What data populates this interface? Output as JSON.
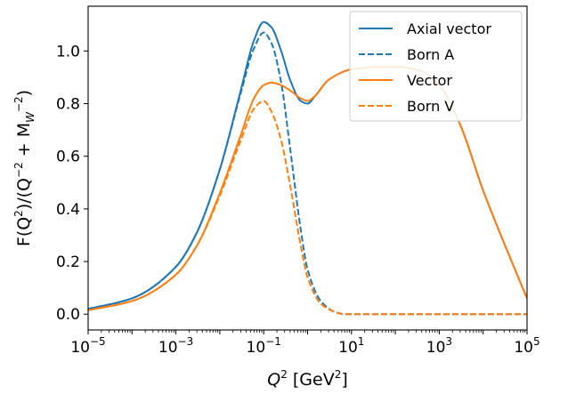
{
  "chart_data": {
    "type": "line",
    "x_scale": "log",
    "xlim": [
      1e-05,
      100000.0
    ],
    "ylim": [
      -0.06,
      1.17
    ],
    "xlabel": {
      "main": "Q",
      "sup": "2",
      "unit_open": " [GeV",
      "unit_sup": "2",
      "unit_close": "]"
    },
    "ylabel": {
      "p1": "F(Q",
      "s1": "2",
      "p2": ")/(Q",
      "s2": "−2",
      "p3": " + M",
      "sub3": "W",
      "s3": "−2",
      "p4": ")"
    },
    "x_ticks": [
      {
        "value": 1e-05,
        "base": "10",
        "exp": "−5"
      },
      {
        "value": 0.001,
        "base": "10",
        "exp": "−3"
      },
      {
        "value": 0.1,
        "base": "10",
        "exp": "−1"
      },
      {
        "value": 10.0,
        "base": "10",
        "exp": "1"
      },
      {
        "value": 1000.0,
        "base": "10",
        "exp": "3"
      },
      {
        "value": 100000.0,
        "base": "10",
        "exp": "5"
      }
    ],
    "y_ticks": [
      0.0,
      0.2,
      0.4,
      0.6,
      0.8,
      1.0
    ],
    "y_tick_labels": [
      "0.0",
      "0.2",
      "0.4",
      "0.6",
      "0.8",
      "1.0"
    ],
    "grid": false,
    "legend_position": "top-right",
    "series": [
      {
        "name": "Axial vector",
        "color": "#1f77b4",
        "dash": "solid",
        "x": [
          1e-05,
          0.0001,
          0.001,
          0.003,
          0.01,
          0.03,
          0.06,
          0.1,
          0.15,
          0.25,
          0.4,
          0.7,
          1,
          1.5,
          3,
          10,
          50,
          100,
          300,
          1000,
          3000,
          10000,
          30000,
          100000
        ],
        "y": [
          0.02,
          0.06,
          0.18,
          0.31,
          0.55,
          0.85,
          1.04,
          1.11,
          1.09,
          1.0,
          0.89,
          0.81,
          0.8,
          0.83,
          0.89,
          0.93,
          0.94,
          0.94,
          0.93,
          0.87,
          0.72,
          0.47,
          0.27,
          0.06
        ]
      },
      {
        "name": "Born A",
        "color": "#1f77b4",
        "dash": "dashed",
        "x": [
          1e-05,
          0.0001,
          0.001,
          0.003,
          0.01,
          0.03,
          0.06,
          0.1,
          0.15,
          0.25,
          0.4,
          0.7,
          1,
          2,
          4,
          7,
          10,
          100,
          1000,
          100000
        ],
        "y": [
          0.02,
          0.06,
          0.18,
          0.31,
          0.55,
          0.84,
          1.01,
          1.07,
          1.03,
          0.88,
          0.63,
          0.32,
          0.17,
          0.05,
          0.01,
          0.0,
          0.0,
          0.0,
          0.0,
          0.0
        ]
      },
      {
        "name": "Vector",
        "color": "#ff7f0e",
        "dash": "solid",
        "x": [
          1e-05,
          0.0001,
          0.001,
          0.003,
          0.01,
          0.03,
          0.06,
          0.1,
          0.15,
          0.25,
          0.4,
          0.7,
          1,
          1.5,
          3,
          10,
          50,
          100,
          300,
          1000,
          3000,
          10000,
          30000,
          100000
        ],
        "y": [
          0.015,
          0.05,
          0.15,
          0.26,
          0.46,
          0.68,
          0.82,
          0.87,
          0.88,
          0.87,
          0.85,
          0.82,
          0.81,
          0.83,
          0.89,
          0.93,
          0.94,
          0.94,
          0.93,
          0.87,
          0.72,
          0.47,
          0.27,
          0.06
        ]
      },
      {
        "name": "Born V",
        "color": "#ff7f0e",
        "dash": "dashed",
        "x": [
          1e-05,
          0.0001,
          0.001,
          0.003,
          0.01,
          0.03,
          0.06,
          0.1,
          0.15,
          0.25,
          0.4,
          0.7,
          1,
          2,
          4,
          7,
          10,
          100,
          1000,
          100000
        ],
        "y": [
          0.015,
          0.05,
          0.15,
          0.26,
          0.45,
          0.66,
          0.78,
          0.81,
          0.77,
          0.66,
          0.49,
          0.26,
          0.14,
          0.04,
          0.01,
          0.0,
          0.0,
          0.0,
          0.0,
          0.0
        ]
      }
    ]
  }
}
